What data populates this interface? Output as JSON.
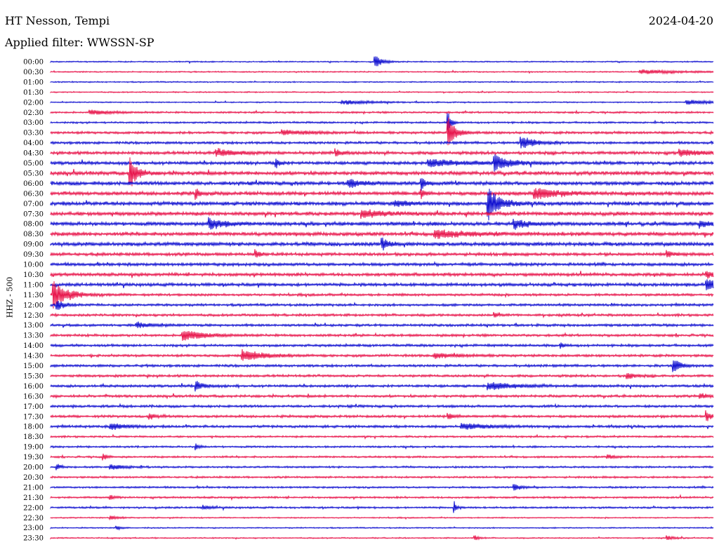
{
  "header": {
    "station": "HT Nesson, Tempi",
    "date": "2024-04-20",
    "filter": "Applied filter: WWSSN-SP"
  },
  "chart_data": {
    "type": "line",
    "title": "HT Nesson, Tempi",
    "ylabel": "HHZ - 500",
    "colors": [
      "#1010d0",
      "#e8164c"
    ],
    "rows": [
      "00:00",
      "00:30",
      "01:00",
      "01:30",
      "02:00",
      "02:30",
      "03:00",
      "03:30",
      "04:00",
      "04:30",
      "05:00",
      "05:30",
      "06:00",
      "06:30",
      "07:00",
      "07:30",
      "08:00",
      "08:30",
      "09:00",
      "09:30",
      "10:00",
      "10:30",
      "11:00",
      "11:30",
      "12:00",
      "12:30",
      "13:00",
      "13:30",
      "14:00",
      "14:30",
      "15:00",
      "15:30",
      "16:00",
      "16:30",
      "17:00",
      "17:30",
      "18:00",
      "18:30",
      "19:00",
      "19:30",
      "20:00",
      "20:30",
      "21:00",
      "21:30",
      "22:00",
      "22:30",
      "23:00",
      "23:30"
    ],
    "noise": [
      1,
      1,
      1,
      1,
      1,
      1.5,
      1.5,
      2,
      2,
      2.5,
      2.5,
      3,
      3,
      3,
      3,
      3,
      3,
      3,
      3,
      2.5,
      2.5,
      2.5,
      2.5,
      2,
      2,
      2,
      2,
      2,
      2,
      2,
      2,
      2,
      2,
      2,
      2,
      2,
      2,
      1.5,
      1.5,
      1.5,
      1.5,
      1.5,
      1.5,
      1.5,
      1.5,
      1,
      1,
      1
    ],
    "events": [
      {
        "row": 0,
        "t": 0.49,
        "amp": 9,
        "dur": 0.01
      },
      {
        "row": 1,
        "t": 0.89,
        "amp": 3,
        "dur": 0.06
      },
      {
        "row": 4,
        "t": 0.44,
        "amp": 3,
        "dur": 0.04
      },
      {
        "row": 4,
        "t": 0.96,
        "amp": 3,
        "dur": 0.05
      },
      {
        "row": 5,
        "t": 0.06,
        "amp": 3,
        "dur": 0.03
      },
      {
        "row": 6,
        "t": 0.6,
        "amp": 14,
        "dur": 0.005
      },
      {
        "row": 7,
        "t": 0.6,
        "amp": 22,
        "dur": 0.01
      },
      {
        "row": 7,
        "t": 0.35,
        "amp": 3,
        "dur": 0.04
      },
      {
        "row": 8,
        "t": 0.71,
        "amp": 9,
        "dur": 0.02
      },
      {
        "row": 9,
        "t": 0.25,
        "amp": 5,
        "dur": 0.03
      },
      {
        "row": 9,
        "t": 0.43,
        "amp": 5,
        "dur": 0.01
      },
      {
        "row": 9,
        "t": 0.95,
        "amp": 4,
        "dur": 0.03
      },
      {
        "row": 10,
        "t": 0.67,
        "amp": 11,
        "dur": 0.02
      },
      {
        "row": 10,
        "t": 0.57,
        "amp": 5,
        "dur": 0.05
      },
      {
        "row": 10,
        "t": 0.34,
        "amp": 8,
        "dur": 0.005
      },
      {
        "row": 11,
        "t": 0.12,
        "amp": 22,
        "dur": 0.01
      },
      {
        "row": 12,
        "t": 0.56,
        "amp": 9,
        "dur": 0.005
      },
      {
        "row": 12,
        "t": 0.45,
        "amp": 5,
        "dur": 0.02
      },
      {
        "row": 13,
        "t": 0.73,
        "amp": 8,
        "dur": 0.03
      },
      {
        "row": 13,
        "t": 0.22,
        "amp": 9,
        "dur": 0.004
      },
      {
        "row": 13,
        "t": 0.56,
        "amp": 7,
        "dur": 0.004
      },
      {
        "row": 14,
        "t": 0.66,
        "amp": 24,
        "dur": 0.015
      },
      {
        "row": 14,
        "t": 0.52,
        "amp": 4,
        "dur": 0.02
      },
      {
        "row": 15,
        "t": 0.47,
        "amp": 5,
        "dur": 0.03
      },
      {
        "row": 16,
        "t": 0.24,
        "amp": 8,
        "dur": 0.02
      },
      {
        "row": 16,
        "t": 0.7,
        "amp": 6,
        "dur": 0.02
      },
      {
        "row": 16,
        "t": 0.98,
        "amp": 6,
        "dur": 0.01
      },
      {
        "row": 17,
        "t": 0.58,
        "amp": 5,
        "dur": 0.05
      },
      {
        "row": 18,
        "t": 0.5,
        "amp": 9,
        "dur": 0.01
      },
      {
        "row": 19,
        "t": 0.31,
        "amp": 6,
        "dur": 0.005
      },
      {
        "row": 19,
        "t": 0.93,
        "amp": 5,
        "dur": 0.01
      },
      {
        "row": 21,
        "t": 0.99,
        "amp": 5,
        "dur": 0.02
      },
      {
        "row": 22,
        "t": 0.99,
        "amp": 8,
        "dur": 0.02
      },
      {
        "row": 23,
        "t": 0.005,
        "amp": 18,
        "dur": 0.02
      },
      {
        "row": 24,
        "t": 0.01,
        "amp": 7,
        "dur": 0.01
      },
      {
        "row": 25,
        "t": 0.67,
        "amp": 4,
        "dur": 0.005
      },
      {
        "row": 26,
        "t": 0.13,
        "amp": 4,
        "dur": 0.02
      },
      {
        "row": 27,
        "t": 0.2,
        "amp": 7,
        "dur": 0.03
      },
      {
        "row": 28,
        "t": 0.77,
        "amp": 4,
        "dur": 0.005
      },
      {
        "row": 29,
        "t": 0.29,
        "amp": 8,
        "dur": 0.03
      },
      {
        "row": 29,
        "t": 0.58,
        "amp": 4,
        "dur": 0.03
      },
      {
        "row": 30,
        "t": 0.94,
        "amp": 10,
        "dur": 0.01
      },
      {
        "row": 31,
        "t": 0.87,
        "amp": 5,
        "dur": 0.01
      },
      {
        "row": 32,
        "t": 0.22,
        "amp": 7,
        "dur": 0.01
      },
      {
        "row": 32,
        "t": 0.66,
        "amp": 5,
        "dur": 0.04
      },
      {
        "row": 33,
        "t": 0.98,
        "amp": 4,
        "dur": 0.01
      },
      {
        "row": 35,
        "t": 0.15,
        "amp": 4,
        "dur": 0.01
      },
      {
        "row": 35,
        "t": 0.6,
        "amp": 4,
        "dur": 0.01
      },
      {
        "row": 35,
        "t": 0.99,
        "amp": 9,
        "dur": 0.005
      },
      {
        "row": 36,
        "t": 0.09,
        "amp": 5,
        "dur": 0.02
      },
      {
        "row": 36,
        "t": 0.62,
        "amp": 4,
        "dur": 0.04
      },
      {
        "row": 38,
        "t": 0.22,
        "amp": 4,
        "dur": 0.005
      },
      {
        "row": 39,
        "t": 0.08,
        "amp": 4,
        "dur": 0.005
      },
      {
        "row": 39,
        "t": 0.84,
        "amp": 4,
        "dur": 0.01
      },
      {
        "row": 40,
        "t": 0.01,
        "amp": 5,
        "dur": 0.005
      },
      {
        "row": 40,
        "t": 0.09,
        "amp": 4,
        "dur": 0.02
      },
      {
        "row": 42,
        "t": 0.7,
        "amp": 4,
        "dur": 0.01
      },
      {
        "row": 43,
        "t": 0.09,
        "amp": 4,
        "dur": 0.005
      },
      {
        "row": 44,
        "t": 0.61,
        "amp": 8,
        "dur": 0.003
      },
      {
        "row": 44,
        "t": 0.23,
        "amp": 3,
        "dur": 0.01
      },
      {
        "row": 45,
        "t": 0.09,
        "amp": 3,
        "dur": 0.01
      },
      {
        "row": 46,
        "t": 0.1,
        "amp": 3,
        "dur": 0.005
      },
      {
        "row": 47,
        "t": 0.64,
        "amp": 4,
        "dur": 0.005
      },
      {
        "row": 47,
        "t": 0.93,
        "amp": 3,
        "dur": 0.01
      }
    ]
  }
}
